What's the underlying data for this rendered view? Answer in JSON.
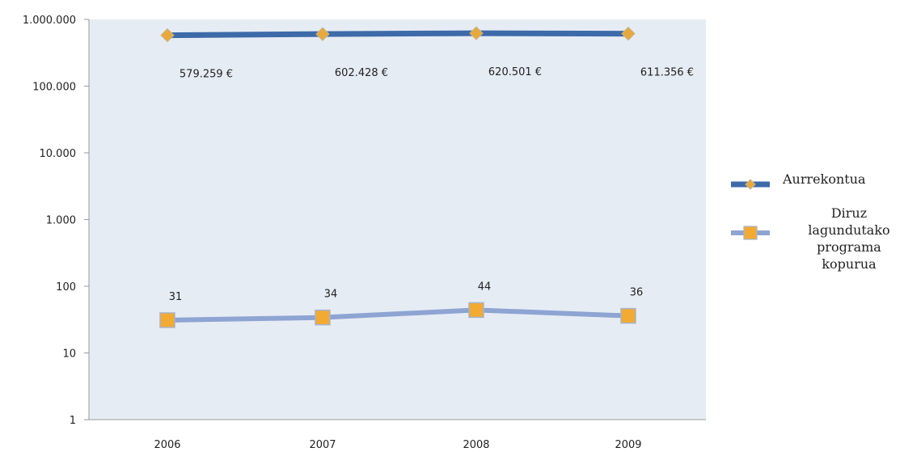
{
  "chart_data": {
    "type": "line",
    "y_scale": "log",
    "ylim": [
      1,
      1000000
    ],
    "grid": false,
    "legend_position": "right",
    "categories": [
      "2006",
      "2007",
      "2008",
      "2009"
    ],
    "y_ticks": [
      {
        "value": 1,
        "label": "1"
      },
      {
        "value": 10,
        "label": "10"
      },
      {
        "value": 100,
        "label": "100"
      },
      {
        "value": 1000,
        "label": "1.000"
      },
      {
        "value": 10000,
        "label": "10.000"
      },
      {
        "value": 100000,
        "label": "100.000"
      },
      {
        "value": 1000000,
        "label": "1.000.000"
      }
    ],
    "series": [
      {
        "name": "Aurrekontua",
        "values": [
          579259,
          602428,
          620501,
          611356
        ],
        "labels": [
          "579.259 €",
          "602.428 €",
          "620.501 €",
          "611.356 €"
        ],
        "line_color": "#3d6aa8",
        "marker": "diamond",
        "marker_color": "#e8a93c"
      },
      {
        "name": "Diruz lagundutako programa kopurua",
        "legend_lines": [
          "Diruz",
          "lagundutako",
          "programa",
          "kopurua"
        ],
        "values": [
          31,
          34,
          44,
          36
        ],
        "labels": [
          "31",
          "34",
          "44",
          "36"
        ],
        "line_color": "#8ea4d2",
        "marker": "square",
        "marker_color": "#f2aa33"
      }
    ],
    "colors": {
      "plot_background": "#e6ecf4",
      "axis": "#9a9a9a"
    }
  }
}
